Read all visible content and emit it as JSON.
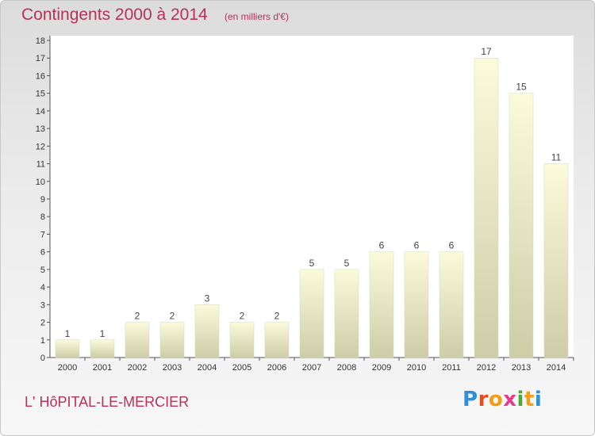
{
  "header": {
    "title": "Contingents 2000 à 2014",
    "subtitle": "(en milliers d'€)"
  },
  "footer": {
    "place": "L' HôPITAL-LE-MERCIER",
    "logo": [
      "P",
      "r",
      "o",
      "x",
      "i",
      "t",
      "i"
    ],
    "logo_colors": [
      "#2f8fd8",
      "#e84b1c",
      "#f29d12",
      "#e53a8d",
      "#4aa83a",
      "#f0a01a",
      "#2f8fd8"
    ]
  },
  "chart_data": {
    "type": "bar",
    "title": "Contingents 2000 à 2014",
    "subtitle": "(en milliers d'€)",
    "categories": [
      "2000",
      "2001",
      "2002",
      "2003",
      "2004",
      "2005",
      "2006",
      "2007",
      "2008",
      "2009",
      "2010",
      "2011",
      "2012",
      "2013",
      "2014"
    ],
    "values": [
      1,
      1,
      2,
      2,
      3,
      2,
      2,
      5,
      5,
      6,
      6,
      6,
      17,
      15,
      11
    ],
    "ylim": [
      0,
      18
    ],
    "yticks": [
      0,
      1,
      2,
      3,
      4,
      5,
      6,
      7,
      8,
      9,
      10,
      11,
      12,
      13,
      14,
      15,
      16,
      17,
      18
    ],
    "grid": false,
    "bar_color_top": "#fbfbdc",
    "bar_color_bottom": "#cdcda8"
  }
}
